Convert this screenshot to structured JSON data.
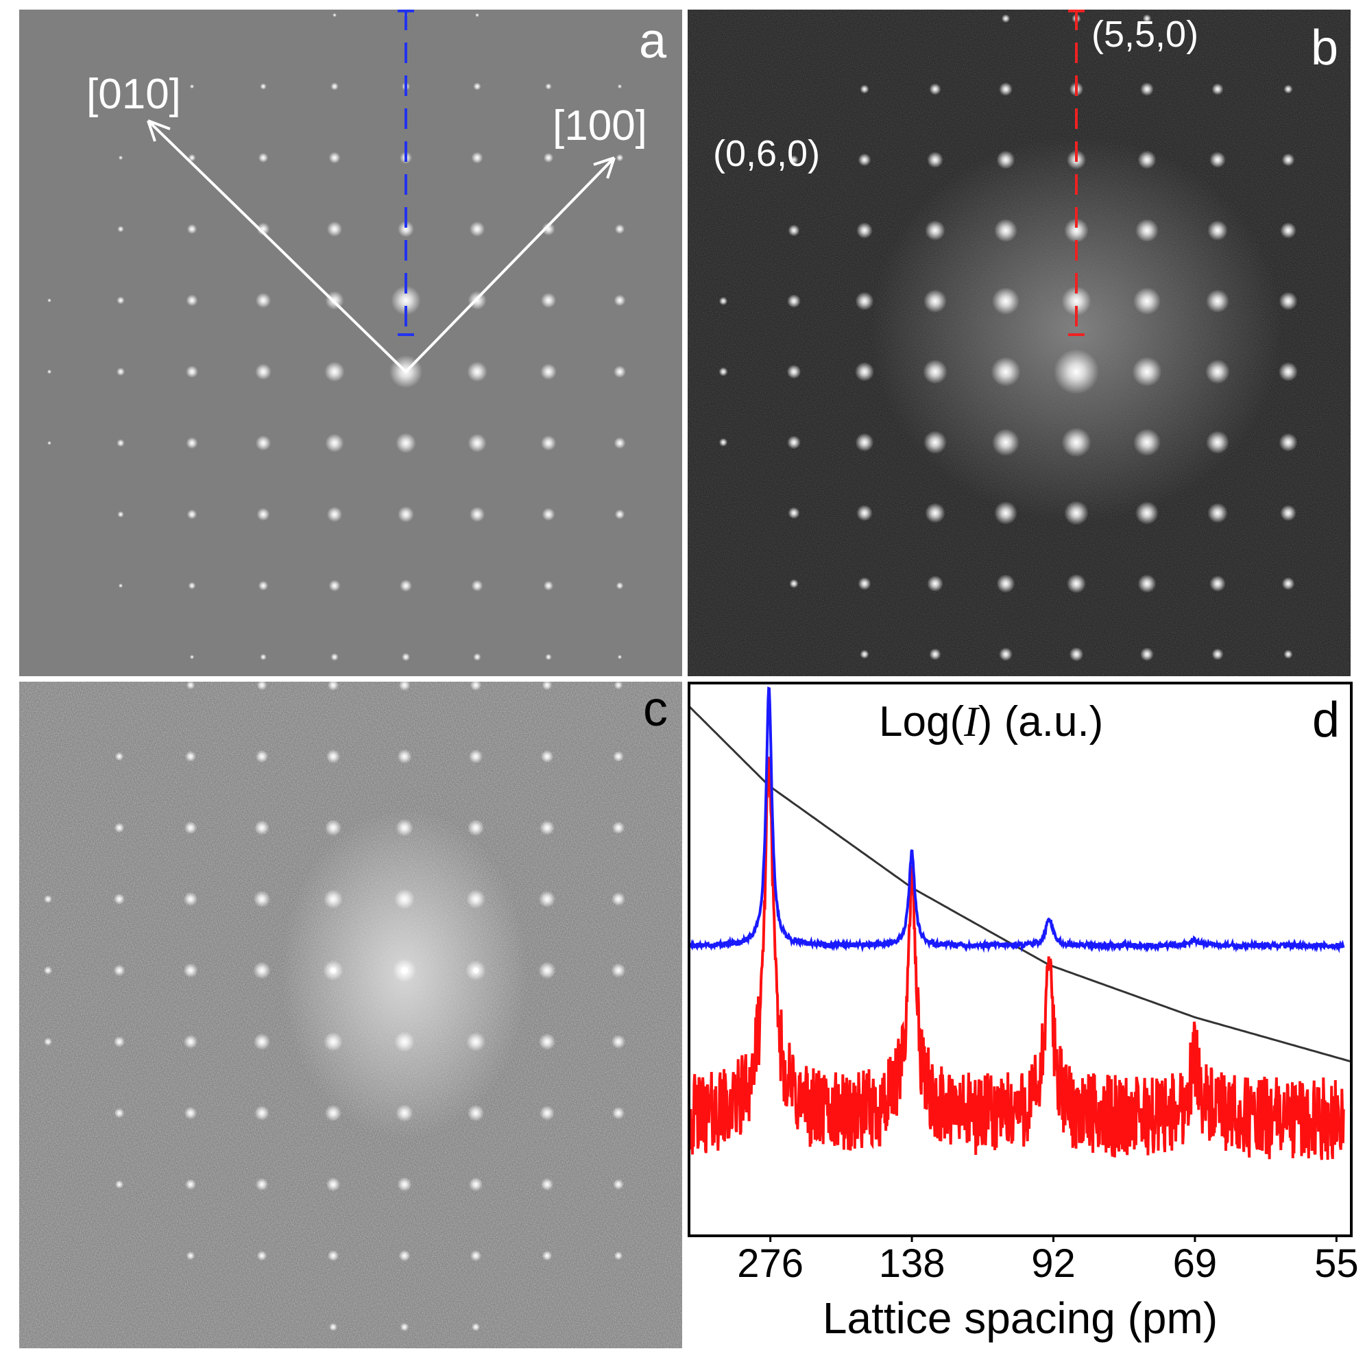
{
  "panels": {
    "a": {
      "letter": "a",
      "arrow_labels": {
        "left": "[010]",
        "right": "[100]"
      },
      "line_color": "#2233ee"
    },
    "b": {
      "letter": "b",
      "labels": {
        "top": "(5,5,0)",
        "left": "(0,6,0)"
      },
      "line_color": "#ee2222"
    },
    "c": {
      "letter": "c"
    },
    "d": {
      "letter": "d"
    }
  },
  "colors": {
    "panel_a_bg": "#7f7f7f",
    "panel_b_bg": "#1f1f1f",
    "panel_c_bg": "#8a8a8a",
    "blue_series": "#1a1aff",
    "red_series": "#ff1010",
    "black_curve": "#333333"
  },
  "chart_data": {
    "type": "line",
    "title": "Log(I) (a.u.)",
    "ylabel_parts": [
      "Log(",
      "I",
      ") (a.u.)"
    ],
    "xlabel": "Lattice spacing (pm)",
    "tick_labels": [
      "276",
      "138",
      "92",
      "69",
      "55"
    ],
    "x_reciprocal_positions": [
      1,
      2,
      3,
      4,
      5
    ],
    "xlim_reciprocal": [
      0.43,
      5.1
    ],
    "ylim": [
      0,
      100
    ],
    "series": [
      {
        "name": "blue",
        "color": "#1a1aff",
        "baseline": 52.5,
        "peaks": [
          {
            "x": 0.99,
            "height": 46.5,
            "width": 0.025
          },
          {
            "x": 2.0,
            "height": 17.0,
            "width": 0.025
          },
          {
            "x": 2.97,
            "height": 5.0,
            "width": 0.03
          },
          {
            "x": 4.0,
            "height": 1.0,
            "width": 0.04
          }
        ]
      },
      {
        "name": "red",
        "color": "#ff1010",
        "baseline": 21.0,
        "peaks": [
          {
            "x": 0.99,
            "height": 58.0,
            "width": 0.035
          },
          {
            "x": 2.0,
            "height": 39.0,
            "width": 0.032
          },
          {
            "x": 2.97,
            "height": 26.0,
            "width": 0.032
          },
          {
            "x": 4.0,
            "height": 10.0,
            "width": 0.04
          }
        ],
        "noise_amplitude": 7.5
      },
      {
        "name": "black",
        "color": "#333333",
        "points": [
          [
            0.43,
            95.8
          ],
          [
            0.99,
            81.5
          ],
          [
            2.0,
            63.0
          ],
          [
            2.97,
            49.0
          ],
          [
            4.0,
            39.5
          ],
          [
            5.1,
            31.5
          ]
        ]
      }
    ]
  }
}
